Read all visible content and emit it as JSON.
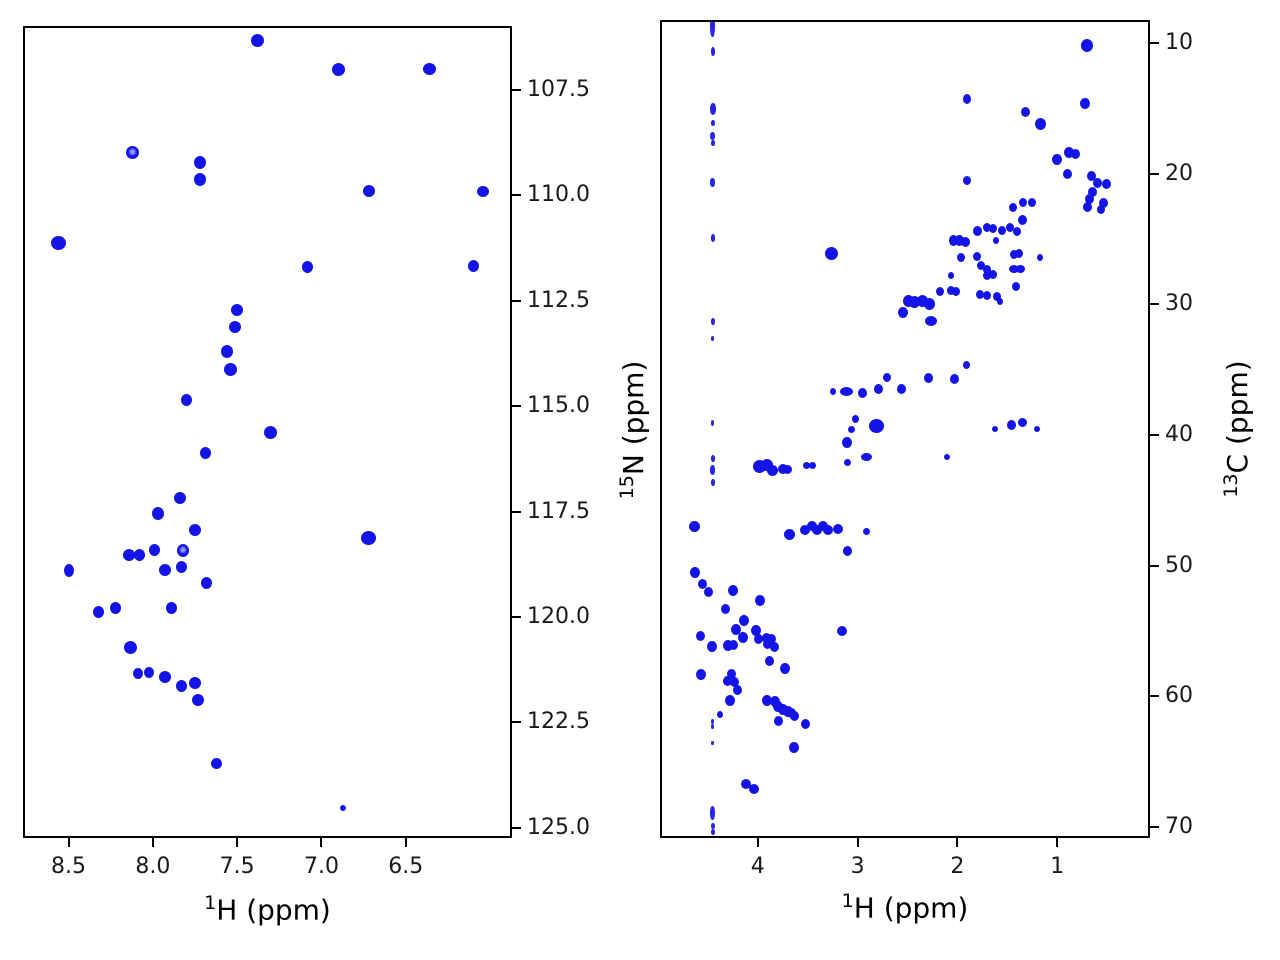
{
  "figure": {
    "background": "#ffffff",
    "peak_color": "#1414e6",
    "peak_ring_center_color": "#9a9aff",
    "axis_color": "#000000",
    "tick_label_color": "#1a1a1a"
  },
  "chart_data": [
    {
      "type": "scatter",
      "name": "1H-15N 2D NMR spectrum",
      "title": "",
      "xlabel": {
        "sup": "1",
        "base": "H (ppm)"
      },
      "ylabel": {
        "sup": "15",
        "base": "N (ppm)"
      },
      "xlim": [
        8.77,
        5.87
      ],
      "ylim": [
        105.98,
        125.24
      ],
      "x_reversed": true,
      "y_reversed": true,
      "grid": false,
      "xticks": [
        8.5,
        8.0,
        7.5,
        7.0,
        6.5
      ],
      "xtick_labels": [
        "8.5",
        "8.0",
        "7.5",
        "7.0",
        "6.5"
      ],
      "yticks": [
        107.5,
        110.0,
        112.5,
        115.0,
        117.5,
        120.0,
        122.5,
        125.0
      ],
      "ytick_labels": [
        "107.5",
        "110.0",
        "112.5",
        "115.0",
        "117.5",
        "120.0",
        "122.5",
        "125.0"
      ],
      "points": [
        [
          7.38,
          106.32,
          13,
          13
        ],
        [
          6.9,
          107.0,
          13,
          13
        ],
        [
          6.36,
          107.0,
          13,
          12
        ],
        [
          8.12,
          108.97,
          13,
          13,
          "ring"
        ],
        [
          7.72,
          109.22,
          12,
          13
        ],
        [
          7.72,
          109.62,
          12,
          13
        ],
        [
          6.72,
          109.9,
          12,
          12
        ],
        [
          6.04,
          109.9,
          12,
          11
        ],
        [
          8.56,
          111.13,
          15,
          14
        ],
        [
          7.08,
          111.7,
          11,
          12
        ],
        [
          6.1,
          111.67,
          11,
          12
        ],
        [
          7.5,
          112.72,
          12,
          12
        ],
        [
          7.51,
          113.12,
          12,
          12
        ],
        [
          7.56,
          113.7,
          12,
          13
        ],
        [
          7.54,
          114.12,
          13,
          13
        ],
        [
          7.8,
          114.85,
          11,
          12
        ],
        [
          7.3,
          115.62,
          13,
          13
        ],
        [
          7.69,
          116.11,
          11,
          12
        ],
        [
          6.72,
          118.12,
          15,
          14
        ],
        [
          7.84,
          117.17,
          12,
          12
        ],
        [
          7.97,
          117.55,
          12,
          13
        ],
        [
          7.75,
          117.93,
          12,
          12
        ],
        [
          7.99,
          118.41,
          11,
          12
        ],
        [
          7.82,
          118.41,
          12,
          13,
          "ring"
        ],
        [
          8.14,
          118.53,
          12,
          12
        ],
        [
          8.08,
          118.53,
          11,
          12
        ],
        [
          7.93,
          118.88,
          12,
          12
        ],
        [
          7.83,
          118.81,
          11,
          12
        ],
        [
          8.5,
          118.9,
          10,
          13
        ],
        [
          7.68,
          119.19,
          11,
          12
        ],
        [
          7.89,
          119.78,
          11,
          12
        ],
        [
          8.32,
          119.87,
          11,
          12
        ],
        [
          8.22,
          119.78,
          11,
          12
        ],
        [
          8.13,
          120.71,
          13,
          13
        ],
        [
          8.09,
          121.35,
          10,
          11
        ],
        [
          8.02,
          121.32,
          10,
          11
        ],
        [
          7.93,
          121.42,
          12,
          12
        ],
        [
          7.83,
          121.63,
          11,
          12
        ],
        [
          7.75,
          121.56,
          12,
          12
        ],
        [
          7.73,
          121.96,
          12,
          12
        ],
        [
          7.62,
          123.48,
          11,
          11
        ],
        [
          6.87,
          124.53,
          6,
          6
        ]
      ]
    },
    {
      "type": "scatter",
      "name": "1H-13C 2D NMR spectrum",
      "title": "",
      "xlabel": {
        "sup": "1",
        "base": "H (ppm)"
      },
      "ylabel": {
        "sup": "13",
        "base": "C (ppm)"
      },
      "xlim": [
        4.98,
        0.07
      ],
      "ylim": [
        8.22,
        70.85
      ],
      "x_reversed": true,
      "y_reversed": true,
      "grid": false,
      "xticks": [
        4,
        3,
        2,
        1
      ],
      "xtick_labels": [
        "4",
        "3",
        "2",
        "1"
      ],
      "yticks": [
        10,
        20,
        30,
        40,
        50,
        60,
        70
      ],
      "ytick_labels": [
        "10",
        "20",
        "30",
        "40",
        "50",
        "60",
        "70"
      ],
      "streak_x": 4.45,
      "streak_marks": [
        [
          8.7,
          5,
          22
        ],
        [
          10.6,
          4,
          9
        ],
        [
          15.0,
          6,
          12
        ],
        [
          16.1,
          4,
          6
        ],
        [
          17.1,
          5,
          8
        ],
        [
          17.6,
          4,
          6
        ],
        [
          20.7,
          5,
          9
        ],
        [
          24.9,
          4,
          8
        ],
        [
          31.3,
          4,
          7
        ],
        [
          32.6,
          3,
          5
        ],
        [
          39.1,
          3,
          6
        ],
        [
          41.8,
          4,
          7
        ],
        [
          42.7,
          5,
          10
        ],
        [
          43.6,
          4,
          7
        ],
        [
          61.9,
          3,
          5
        ],
        [
          62.3,
          3,
          5
        ],
        [
          63.6,
          3,
          4
        ],
        [
          68.9,
          5,
          14
        ],
        [
          69.9,
          4,
          6
        ],
        [
          70.4,
          4,
          6
        ]
      ],
      "points": [
        [
          0.7,
          10.2,
          12,
          13
        ],
        [
          1.9,
          14.3,
          8,
          10
        ],
        [
          0.72,
          14.6,
          10,
          11
        ],
        [
          1.32,
          15.3,
          9,
          10
        ],
        [
          1.17,
          16.2,
          11,
          12
        ],
        [
          1.0,
          18.9,
          10,
          11
        ],
        [
          0.88,
          18.4,
          10,
          11
        ],
        [
          0.82,
          18.5,
          9,
          10
        ],
        [
          0.9,
          20.0,
          9,
          10
        ],
        [
          1.9,
          20.5,
          8,
          9
        ],
        [
          0.66,
          20.2,
          9,
          10
        ],
        [
          0.6,
          20.7,
          9,
          10
        ],
        [
          0.51,
          20.8,
          9,
          10
        ],
        [
          0.65,
          21.4,
          9,
          10
        ],
        [
          0.68,
          21.9,
          9,
          10
        ],
        [
          0.7,
          22.5,
          9,
          10
        ],
        [
          0.54,
          22.2,
          9,
          10
        ],
        [
          0.56,
          22.7,
          8,
          9
        ],
        [
          1.44,
          22.6,
          8,
          9
        ],
        [
          1.34,
          22.2,
          8,
          9
        ],
        [
          1.25,
          22.2,
          8,
          9
        ],
        [
          1.35,
          23.5,
          9,
          10
        ],
        [
          1.47,
          24.1,
          8,
          9
        ],
        [
          1.4,
          24.4,
          8,
          9
        ],
        [
          1.8,
          24.4,
          9,
          10
        ],
        [
          1.7,
          24.1,
          8,
          9
        ],
        [
          1.64,
          24.2,
          8,
          9
        ],
        [
          1.55,
          24.3,
          8,
          9
        ],
        [
          2.04,
          25.1,
          9,
          11
        ],
        [
          1.98,
          25.1,
          9,
          11
        ],
        [
          1.92,
          25.2,
          9,
          10
        ],
        [
          1.61,
          25.1,
          6,
          7
        ],
        [
          1.43,
          26.2,
          8,
          9
        ],
        [
          1.38,
          26.1,
          8,
          9
        ],
        [
          1.17,
          26.4,
          6,
          7
        ],
        [
          1.96,
          26.4,
          8,
          9
        ],
        [
          1.8,
          26.3,
          8,
          9
        ],
        [
          1.76,
          27.0,
          8,
          9
        ],
        [
          1.7,
          27.3,
          8,
          9
        ],
        [
          1.64,
          27.7,
          8,
          9
        ],
        [
          1.43,
          27.3,
          10,
          8
        ],
        [
          1.37,
          27.3,
          9,
          8
        ],
        [
          2.06,
          27.8,
          6,
          7
        ],
        [
          1.7,
          27.8,
          8,
          9
        ],
        [
          1.41,
          28.6,
          8,
          9
        ],
        [
          2.17,
          29.0,
          8,
          9
        ],
        [
          2.06,
          28.9,
          8,
          9
        ],
        [
          2.01,
          29.0,
          8,
          9
        ],
        [
          1.77,
          29.2,
          8,
          9
        ],
        [
          1.7,
          29.3,
          8,
          9
        ],
        [
          1.6,
          29.4,
          8,
          9
        ],
        [
          1.57,
          29.8,
          6,
          7
        ],
        [
          2.49,
          29.7,
          11,
          12
        ],
        [
          2.43,
          29.8,
          11,
          12
        ],
        [
          2.35,
          29.7,
          11,
          12
        ],
        [
          2.28,
          30.0,
          11,
          12
        ],
        [
          2.55,
          30.6,
          10,
          11
        ],
        [
          2.26,
          31.3,
          12,
          10
        ],
        [
          3.26,
          26.1,
          13,
          13
        ],
        [
          2.71,
          35.6,
          8,
          9
        ],
        [
          2.29,
          35.6,
          9,
          10
        ],
        [
          2.03,
          35.7,
          9,
          10
        ],
        [
          1.91,
          34.6,
          7,
          8
        ],
        [
          3.25,
          36.7,
          6,
          7
        ],
        [
          3.11,
          36.7,
          13,
          9
        ],
        [
          2.95,
          36.8,
          9,
          10
        ],
        [
          2.79,
          36.5,
          9,
          10
        ],
        [
          2.56,
          36.5,
          9,
          10
        ],
        [
          3.02,
          38.8,
          7,
          8
        ],
        [
          2.81,
          39.3,
          15,
          14
        ],
        [
          3.06,
          39.6,
          7,
          7
        ],
        [
          3.11,
          40.6,
          10,
          11
        ],
        [
          1.62,
          39.5,
          6,
          6
        ],
        [
          1.46,
          39.2,
          9,
          10
        ],
        [
          1.35,
          39.0,
          9,
          9
        ],
        [
          1.2,
          39.5,
          6,
          6
        ],
        [
          2.1,
          41.7,
          6,
          6
        ],
        [
          2.91,
          41.7,
          11,
          8
        ],
        [
          3.1,
          42.1,
          7,
          7
        ],
        [
          3.98,
          42.4,
          13,
          13
        ],
        [
          3.91,
          42.3,
          12,
          12
        ],
        [
          3.85,
          42.7,
          11,
          11
        ],
        [
          3.75,
          42.6,
          10,
          10
        ],
        [
          3.7,
          42.6,
          9,
          9
        ],
        [
          3.51,
          42.3,
          7,
          7
        ],
        [
          3.45,
          42.3,
          7,
          7
        ],
        [
          4.63,
          47.0,
          11,
          11
        ],
        [
          3.68,
          47.6,
          11,
          11
        ],
        [
          3.53,
          47.3,
          10,
          10
        ],
        [
          3.46,
          47.0,
          10,
          10
        ],
        [
          3.41,
          47.3,
          10,
          10
        ],
        [
          3.35,
          47.0,
          10,
          10
        ],
        [
          3.3,
          47.3,
          10,
          10
        ],
        [
          3.2,
          47.2,
          10,
          10
        ],
        [
          3.1,
          48.9,
          9,
          10
        ],
        [
          2.91,
          47.4,
          7,
          7
        ],
        [
          4.63,
          50.5,
          10,
          11
        ],
        [
          4.55,
          51.4,
          9,
          10
        ],
        [
          4.49,
          52.0,
          9,
          10
        ],
        [
          4.25,
          51.9,
          10,
          11
        ],
        [
          3.98,
          52.7,
          10,
          11
        ],
        [
          4.32,
          53.3,
          9,
          10
        ],
        [
          4.14,
          54.2,
          10,
          11
        ],
        [
          4.22,
          54.9,
          10,
          11
        ],
        [
          4.15,
          55.5,
          10,
          11
        ],
        [
          4.02,
          55.0,
          10,
          11
        ],
        [
          3.99,
          55.6,
          9,
          10
        ],
        [
          3.91,
          55.5,
          9,
          10
        ],
        [
          3.86,
          55.6,
          9,
          10
        ],
        [
          4.57,
          55.4,
          9,
          10
        ],
        [
          4.46,
          56.2,
          10,
          11
        ],
        [
          4.3,
          56.1,
          10,
          11
        ],
        [
          4.24,
          56.1,
          9,
          10
        ],
        [
          3.9,
          56.0,
          9,
          10
        ],
        [
          3.83,
          56.2,
          9,
          10
        ],
        [
          3.88,
          57.3,
          9,
          10
        ],
        [
          3.73,
          57.9,
          10,
          11
        ],
        [
          3.16,
          55.0,
          10,
          10
        ],
        [
          4.57,
          58.3,
          10,
          11
        ],
        [
          4.3,
          58.8,
          9,
          10
        ],
        [
          4.26,
          58.3,
          9,
          10
        ],
        [
          4.23,
          58.9,
          9,
          10
        ],
        [
          4.2,
          59.5,
          9,
          10
        ],
        [
          4.28,
          60.3,
          10,
          11
        ],
        [
          4.38,
          61.4,
          6,
          7
        ],
        [
          3.91,
          60.3,
          10,
          11
        ],
        [
          3.83,
          60.4,
          10,
          11
        ],
        [
          3.8,
          60.8,
          10,
          11
        ],
        [
          3.75,
          61.0,
          10,
          11
        ],
        [
          3.7,
          61.2,
          10,
          11
        ],
        [
          3.66,
          61.3,
          9,
          10
        ],
        [
          3.63,
          61.5,
          9,
          10
        ],
        [
          3.79,
          61.9,
          9,
          10
        ],
        [
          3.52,
          62.1,
          9,
          10
        ],
        [
          3.64,
          63.9,
          10,
          11
        ],
        [
          4.12,
          66.7,
          10,
          10
        ],
        [
          4.04,
          67.1,
          10,
          10
        ]
      ]
    }
  ]
}
